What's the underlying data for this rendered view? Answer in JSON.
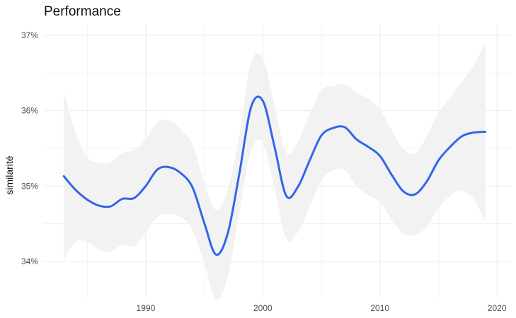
{
  "chart_data": {
    "type": "line",
    "title": "Performance",
    "xlabel": "",
    "ylabel": "similarité",
    "xlim": [
      1981.3,
      2021.2
    ],
    "ylim": [
      33.53,
      37.15
    ],
    "x_ticks": [
      1990,
      2000,
      2010,
      2020
    ],
    "x_tick_labels": [
      "1990",
      "2000",
      "2010",
      "2020"
    ],
    "y_ticks": [
      34,
      35,
      36,
      37
    ],
    "y_tick_labels": [
      "34%",
      "35%",
      "36%",
      "37%"
    ],
    "grid": true,
    "legend": "none",
    "colors": {
      "line": "#3366e6",
      "band": "#f2f2f2",
      "grid": "#ebebeb"
    },
    "series": [
      {
        "x": [
          1983,
          1984,
          1985,
          1986,
          1987,
          1988,
          1989,
          1990,
          1991,
          1992,
          1993,
          1994,
          1995,
          1996,
          1997,
          1998,
          1999,
          2000,
          2001,
          2002,
          2003,
          2004,
          2005,
          2006,
          2007,
          2008,
          2009,
          2010,
          2011,
          2012,
          2013,
          2014,
          2015,
          2016,
          2017,
          2018,
          2019
        ],
        "y": [
          35.13,
          34.95,
          34.82,
          34.74,
          34.73,
          34.83,
          34.84,
          35.0,
          35.22,
          35.25,
          35.17,
          34.98,
          34.51,
          34.09,
          34.37,
          35.17,
          36.05,
          36.13,
          35.52,
          34.87,
          34.99,
          35.34,
          35.67,
          35.77,
          35.78,
          35.62,
          35.52,
          35.4,
          35.15,
          34.93,
          34.89,
          35.06,
          35.34,
          35.52,
          35.66,
          35.71,
          35.72
        ],
        "upper": [
          36.25,
          35.72,
          35.38,
          35.31,
          35.32,
          35.44,
          35.48,
          35.62,
          35.85,
          35.87,
          35.75,
          35.55,
          35.05,
          34.68,
          34.95,
          35.68,
          36.64,
          36.69,
          36.07,
          35.44,
          35.59,
          35.96,
          36.27,
          36.33,
          36.35,
          36.24,
          36.16,
          36.02,
          35.74,
          35.49,
          35.43,
          35.66,
          35.97,
          36.17,
          36.38,
          36.59,
          36.91
        ],
        "lower": [
          34.02,
          34.26,
          34.26,
          34.16,
          34.13,
          34.22,
          34.2,
          34.38,
          34.59,
          34.63,
          34.59,
          34.41,
          33.97,
          33.5,
          33.79,
          34.66,
          35.47,
          35.57,
          34.97,
          34.3,
          34.39,
          34.72,
          35.07,
          35.21,
          35.21,
          35.0,
          34.88,
          34.78,
          34.56,
          34.37,
          34.35,
          34.46,
          34.71,
          34.87,
          34.94,
          34.83,
          34.53
        ]
      }
    ]
  }
}
